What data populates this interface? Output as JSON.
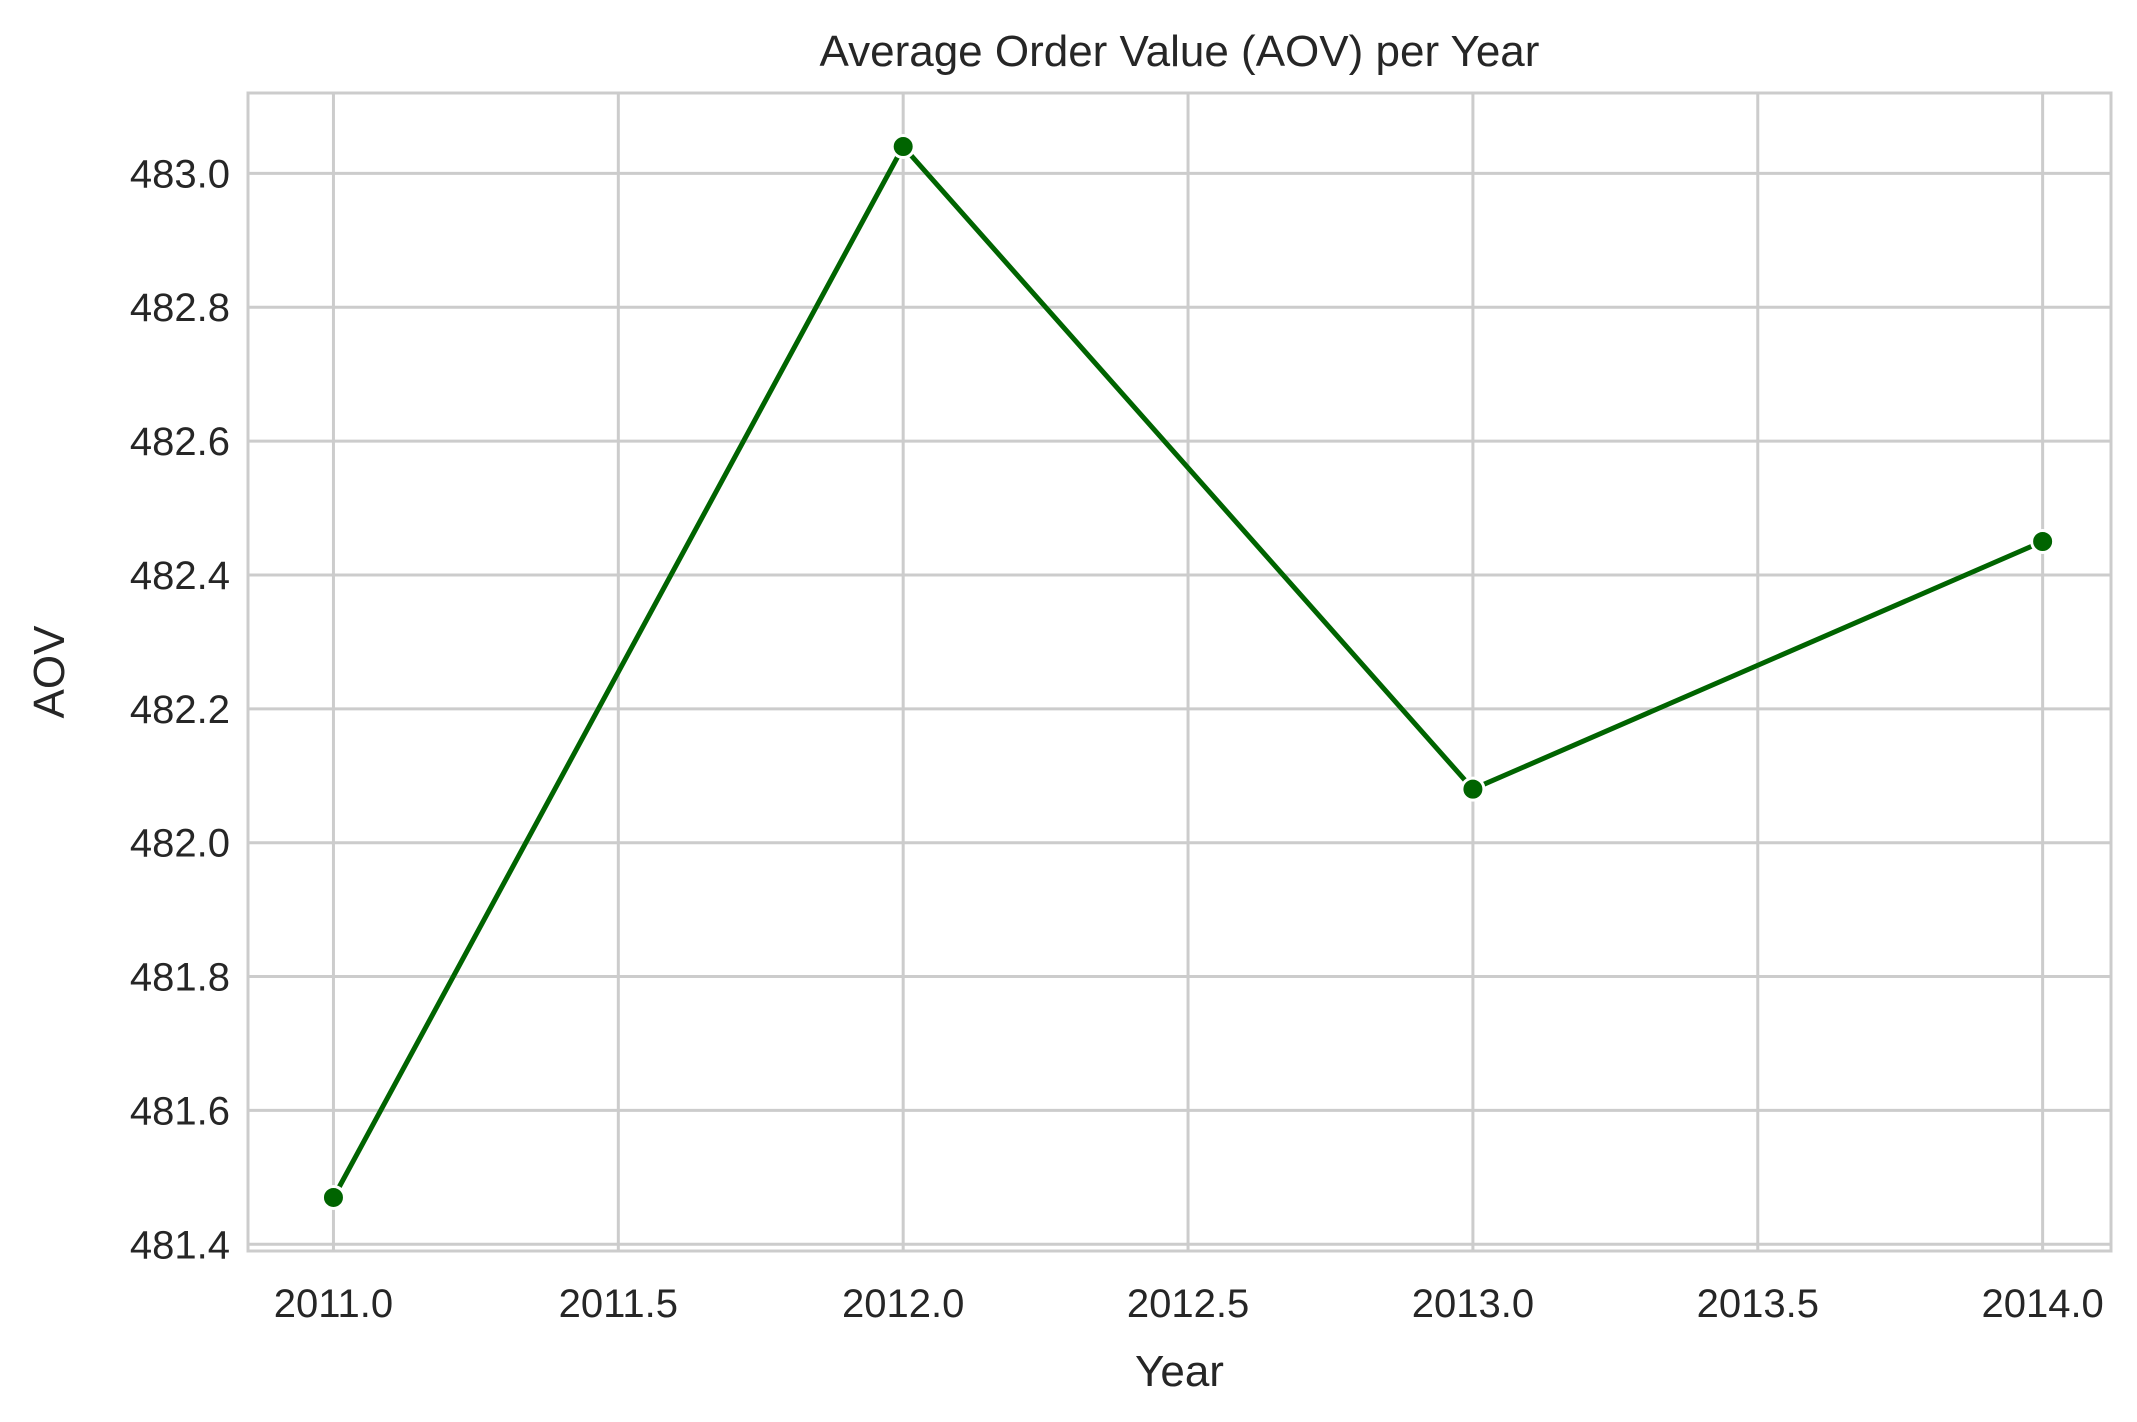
{
  "chart_data": {
    "type": "line",
    "title": "Average Order Value (AOV) per Year",
    "xlabel": "Year",
    "ylabel": "AOV",
    "xlim": [
      2010.85,
      2014.12
    ],
    "ylim": [
      481.39,
      483.12
    ],
    "xticks": [
      2011.0,
      2011.5,
      2012.0,
      2012.5,
      2013.0,
      2013.5,
      2014.0
    ],
    "xtick_labels": [
      "2011.0",
      "2011.5",
      "2012.0",
      "2012.5",
      "2013.0",
      "2013.5",
      "2014.0"
    ],
    "yticks": [
      481.4,
      481.6,
      481.8,
      482.0,
      482.2,
      482.4,
      482.6,
      482.8,
      483.0
    ],
    "ytick_labels": [
      "481.4",
      "481.6",
      "481.8",
      "482.0",
      "482.2",
      "482.4",
      "482.6",
      "482.8",
      "483.0"
    ],
    "grid": true,
    "series": [
      {
        "color": "#006400",
        "marker": "circle",
        "x": [
          2011,
          2012,
          2013,
          2014
        ],
        "y": [
          481.47,
          483.04,
          482.08,
          482.45
        ]
      }
    ]
  }
}
